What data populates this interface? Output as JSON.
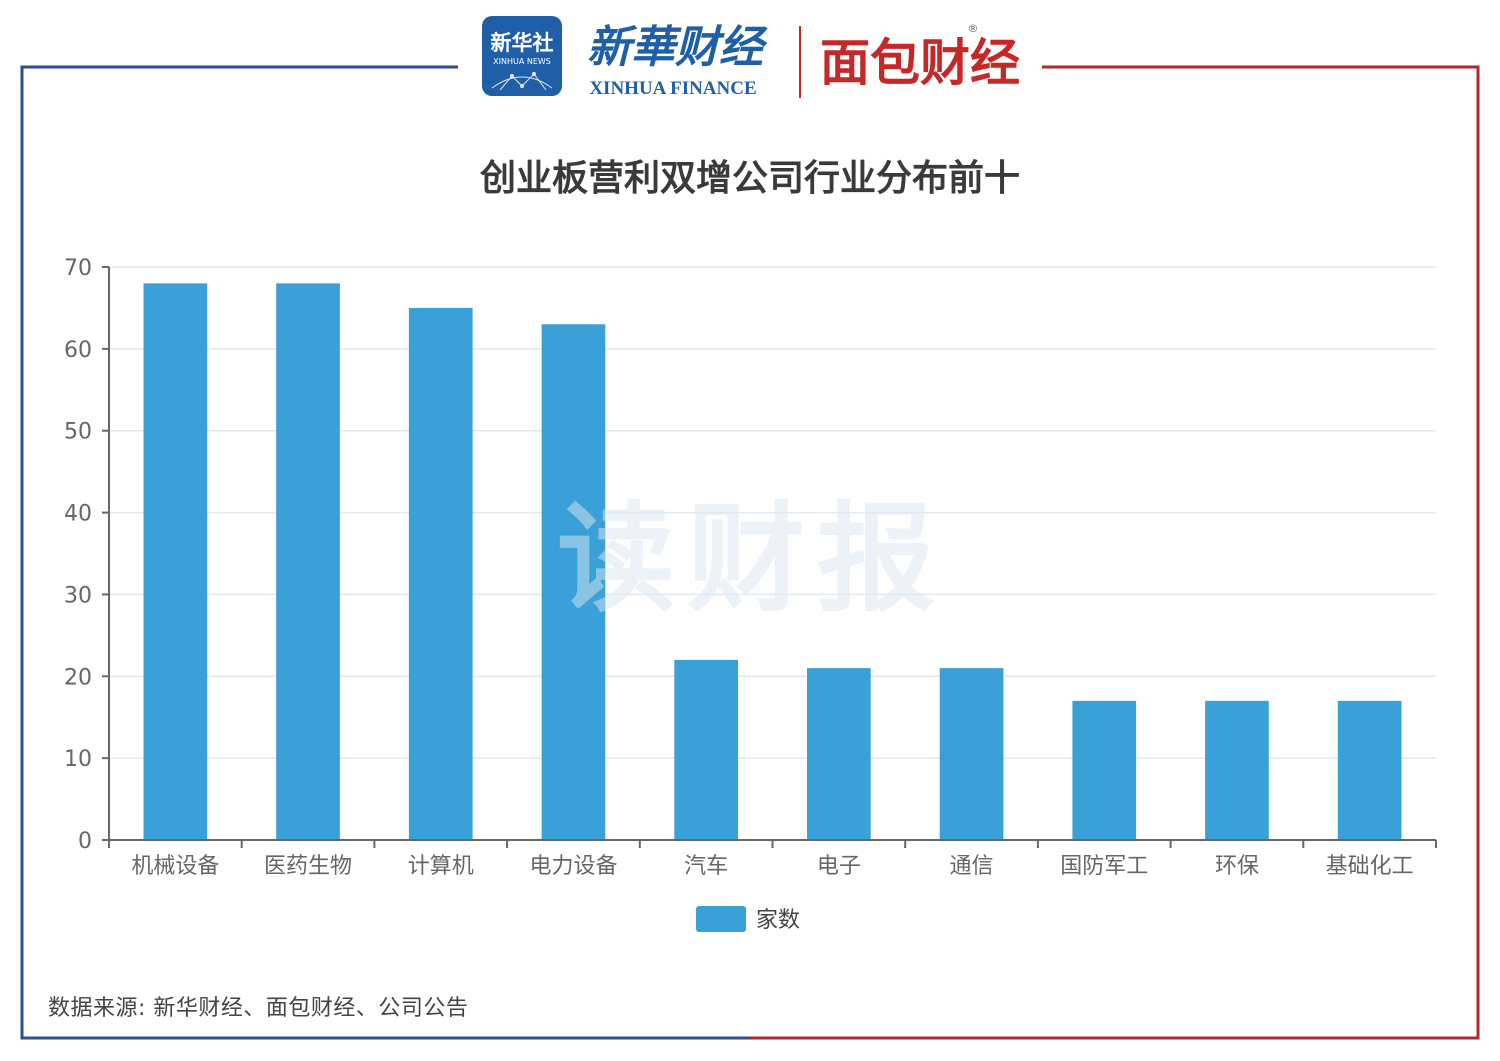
{
  "header": {
    "xinhua_badge_text": "新华社",
    "xinhua_badge_sub": "XINHUA NEWS",
    "xinhua_finance_cn": "新華财经",
    "xinhua_finance_en": "XINHUA FINANCE",
    "mianbao_logo": "面包财经",
    "registered_mark": "®"
  },
  "watermark": "读财报",
  "source_note": "数据来源: 新华财经、面包财经、公司公告",
  "colors": {
    "bar": "#3aa0d8",
    "frame_left": "#2d4f8e",
    "frame_right": "#b0272f",
    "gridline": "#e3e8ef",
    "axis": "#666666",
    "badge_bg": "#1f5fa8",
    "finance_blue": "#1f5fa8",
    "mianbao_red": "#c62828"
  },
  "chart_data": {
    "type": "bar",
    "title": "创业板营利双增公司行业分布前十",
    "xlabel": "",
    "ylabel": "",
    "categories": [
      "机械设备",
      "医药生物",
      "计算机",
      "电力设备",
      "汽车",
      "电子",
      "通信",
      "国防军工",
      "环保",
      "基础化工"
    ],
    "series": [
      {
        "name": "家数",
        "values": [
          68,
          68,
          65,
          63,
          22,
          21,
          21,
          17,
          17,
          17
        ]
      }
    ],
    "ylim": [
      0,
      70
    ],
    "yticks": [
      0,
      10,
      20,
      30,
      40,
      50,
      60,
      70
    ],
    "grid": true,
    "legend_position": "bottom-center"
  }
}
